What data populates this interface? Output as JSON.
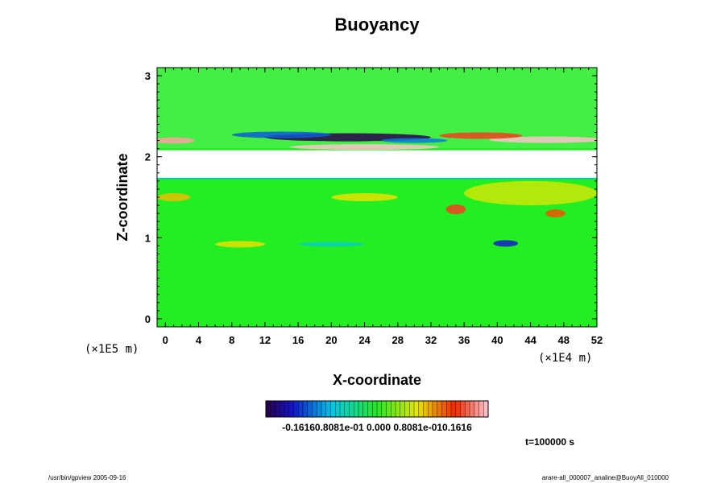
{
  "chart_data": {
    "type": "heatmap",
    "title": "Buoyancy",
    "xlabel": "X-coordinate",
    "ylabel": "Z-coordinate",
    "x_unit_label": "(×1E4 m)",
    "y_unit_label": "(×1E5 m)",
    "xlim": [
      -1,
      52
    ],
    "ylim": [
      -0.1,
      3.1
    ],
    "x_ticks": [
      "0",
      "4",
      "8",
      "12",
      "16",
      "20",
      "24",
      "28",
      "32",
      "36",
      "40",
      "44",
      "48",
      "52"
    ],
    "y_ticks": [
      "0",
      "1",
      "2",
      "3"
    ],
    "x_tick_values": [
      0,
      4,
      8,
      12,
      16,
      20,
      24,
      28,
      32,
      36,
      40,
      44,
      48,
      52
    ],
    "y_tick_values": [
      0,
      1,
      2,
      3
    ],
    "gap_z_range": [
      1.73,
      2.08
    ],
    "colorbar": {
      "ticklabel_text": "-0.16160.8081e-01 0.000 0.8081e-010.1616",
      "range": [
        -0.1616,
        0.1616
      ],
      "segments": 48
    },
    "time_label": "t=100000 s",
    "features": [
      {
        "x": 22,
        "z": 2.24,
        "value": -0.16,
        "rx": 10,
        "rz": 0.05
      },
      {
        "x": 14,
        "z": 2.27,
        "value": -0.1,
        "rx": 6,
        "rz": 0.04
      },
      {
        "x": 24,
        "z": 2.12,
        "value": 0.16,
        "rx": 9,
        "rz": 0.035
      },
      {
        "x": 46,
        "z": 2.21,
        "value": 0.16,
        "rx": 7,
        "rz": 0.04
      },
      {
        "x": 38,
        "z": 2.26,
        "value": 0.12,
        "rx": 5,
        "rz": 0.04
      },
      {
        "x": 1,
        "z": 2.2,
        "value": 0.15,
        "rx": 2.5,
        "rz": 0.04
      },
      {
        "x": 30,
        "z": 2.2,
        "value": -0.09,
        "rx": 4,
        "rz": 0.03
      },
      {
        "x": 35,
        "z": 1.35,
        "value": 0.12,
        "rx": 1.2,
        "rz": 0.06
      },
      {
        "x": 47,
        "z": 1.3,
        "value": 0.1,
        "rx": 1.2,
        "rz": 0.05
      },
      {
        "x": 41,
        "z": 0.93,
        "value": -0.12,
        "rx": 1.5,
        "rz": 0.04
      },
      {
        "x": 9,
        "z": 0.92,
        "value": 0.06,
        "rx": 3,
        "rz": 0.04
      },
      {
        "x": 20,
        "z": 0.92,
        "value": -0.05,
        "rx": 4,
        "rz": 0.03
      },
      {
        "x": 1,
        "z": 1.5,
        "value": 0.07,
        "rx": 2,
        "rz": 0.05
      },
      {
        "x": 24,
        "z": 1.5,
        "value": 0.06,
        "rx": 4,
        "rz": 0.05
      },
      {
        "x": 44,
        "z": 1.55,
        "value": 0.05,
        "rx": 8,
        "rz": 0.15
      }
    ]
  },
  "footer": {
    "left": "/usr/bin/gpview 2005-09-16",
    "right": "arare-all_000007_analine@BuoyAll_010000"
  }
}
